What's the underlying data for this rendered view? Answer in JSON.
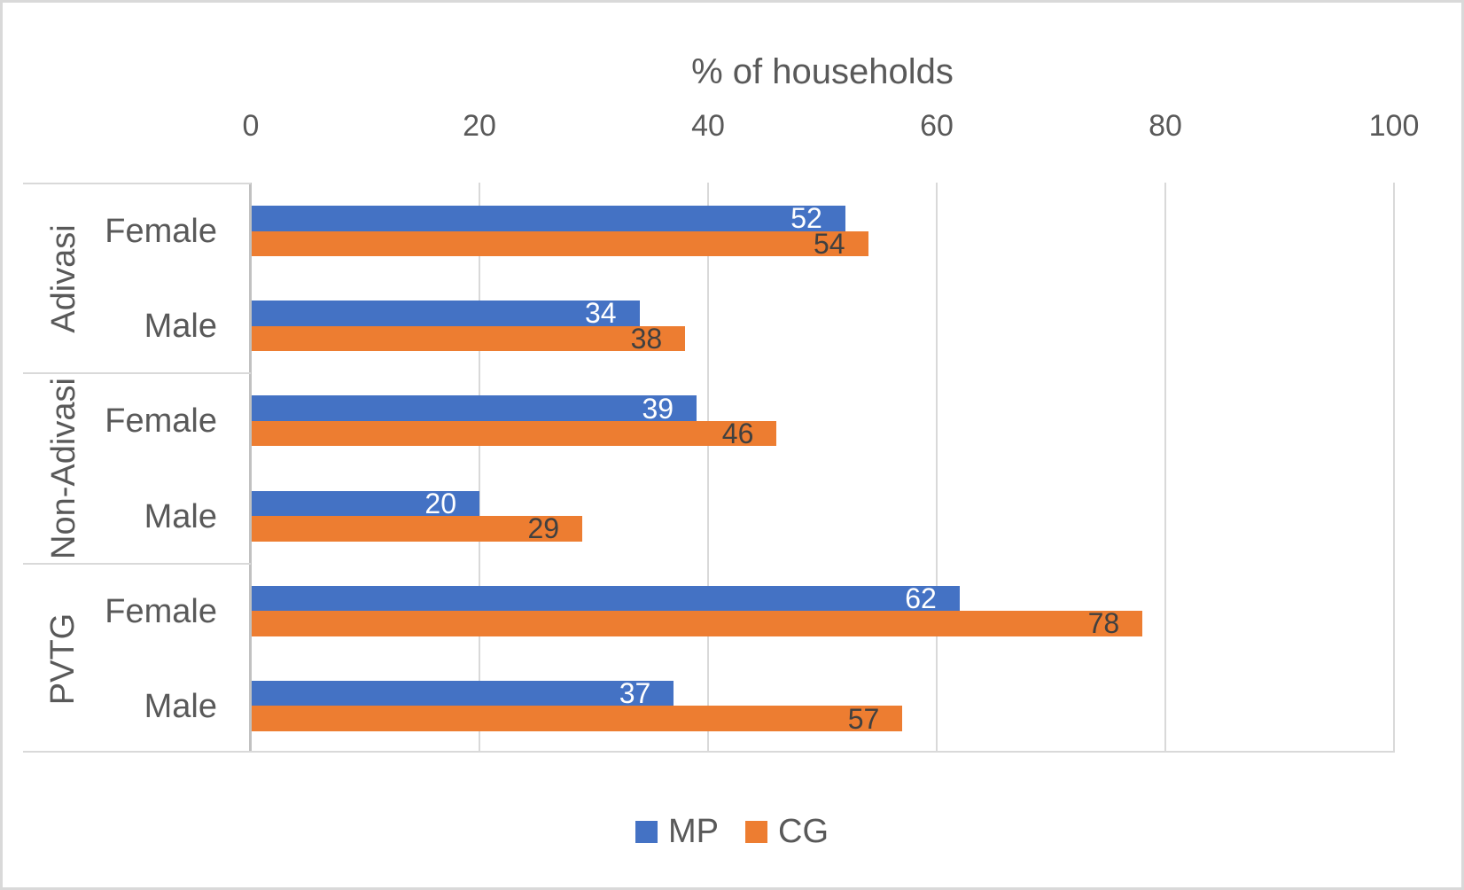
{
  "chart_data": {
    "type": "bar",
    "orientation": "horizontal",
    "title": "% of households",
    "xlim": [
      0,
      100
    ],
    "ticks": [
      0,
      20,
      40,
      60,
      80,
      100
    ],
    "grid": true,
    "legend_position": "bottom",
    "groups": [
      {
        "label": "Adivasi",
        "children": [
          "Female",
          "Male"
        ]
      },
      {
        "label": "Non-Adivasi",
        "children": [
          "Female",
          "Male"
        ]
      },
      {
        "label": "PVTG",
        "children": [
          "Female",
          "Male"
        ]
      }
    ],
    "categories": [
      "Adivasi Female",
      "Adivasi Male",
      "Non-Adivasi Female",
      "Non-Adivasi Male",
      "PVTG Female",
      "PVTG Male"
    ],
    "series": [
      {
        "name": "MP",
        "color": "#4472C4",
        "label_color": "#FFFFFF",
        "values": [
          52,
          34,
          39,
          20,
          62,
          37
        ]
      },
      {
        "name": "CG",
        "color": "#ED7D31",
        "label_color": "#404040",
        "values": [
          54,
          38,
          46,
          29,
          78,
          57
        ]
      }
    ]
  },
  "style_colors": {
    "axis_text": "#595959",
    "gridline": "#D9D9D9",
    "axis_line": "#C1C1C1",
    "page_border": "#D9D9D9"
  }
}
